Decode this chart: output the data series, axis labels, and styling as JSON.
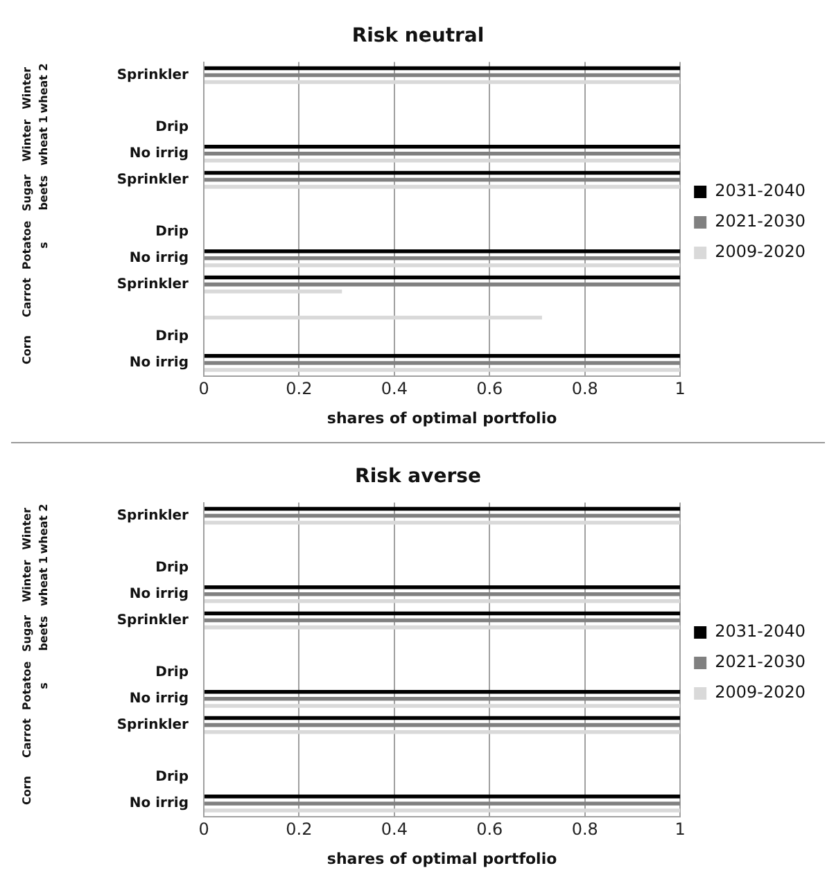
{
  "chart_data": [
    {
      "type": "bar",
      "orientation": "horizontal",
      "title": "Risk neutral",
      "xlabel": "shares of optimal portfolio",
      "categories": [
        "Sprinkler",
        null,
        "Drip",
        "No irrig",
        "Sprinkler",
        null,
        "Drip",
        "No irrig",
        "Sprinkler",
        null,
        "Drip",
        "No irrig"
      ],
      "annotations": [
        "Winter wheat 2",
        "Winter wheat 1",
        "Sugar beets",
        "Potatoes",
        "Carrot",
        "Corn"
      ],
      "series": [
        {
          "name": "2031-2040",
          "color": "#000000",
          "values": [
            1,
            null,
            0,
            1,
            1,
            null,
            0,
            1,
            1,
            0,
            0,
            1
          ]
        },
        {
          "name": "2021-2030",
          "color": "#808080",
          "values": [
            1,
            null,
            0,
            1,
            1,
            null,
            0,
            1,
            1,
            0,
            0,
            1
          ]
        },
        {
          "name": "2009-2020",
          "color": "#d9d9d9",
          "values": [
            1,
            null,
            0,
            1,
            1,
            null,
            0,
            1,
            0.29,
            0.71,
            0,
            1
          ]
        }
      ],
      "xlim": [
        0,
        1
      ],
      "xticks": [
        0,
        0.2,
        0.4,
        0.6,
        0.8,
        1
      ],
      "grid": "x",
      "legend": "right"
    },
    {
      "type": "bar",
      "orientation": "horizontal",
      "title": "Risk averse",
      "xlabel": "shares of optimal portfolio",
      "categories": [
        "Sprinkler",
        null,
        "Drip",
        "No irrig",
        "Sprinkler",
        null,
        "Drip",
        "No irrig",
        "Sprinkler",
        null,
        "Drip",
        "No irrig"
      ],
      "annotations": [
        "Winter wheat 2",
        "Winter wheat 1",
        "Sugar beets",
        "Potatoes",
        "Carrot",
        "Corn"
      ],
      "series": [
        {
          "name": "2031-2040",
          "color": "#000000",
          "values": [
            1,
            null,
            0,
            1,
            1,
            null,
            0,
            1,
            1,
            0,
            0,
            1
          ]
        },
        {
          "name": "2021-2030",
          "color": "#808080",
          "values": [
            1,
            null,
            0,
            1,
            1,
            null,
            0,
            1,
            1,
            0,
            0,
            1
          ]
        },
        {
          "name": "2009-2020",
          "color": "#d9d9d9",
          "values": [
            1,
            null,
            0,
            1,
            1,
            null,
            0,
            1,
            1,
            0,
            0,
            1
          ]
        }
      ],
      "xlim": [
        0,
        1
      ],
      "xticks": [
        0,
        0.2,
        0.4,
        0.6,
        0.8,
        1
      ],
      "grid": "x",
      "legend": "right"
    }
  ]
}
